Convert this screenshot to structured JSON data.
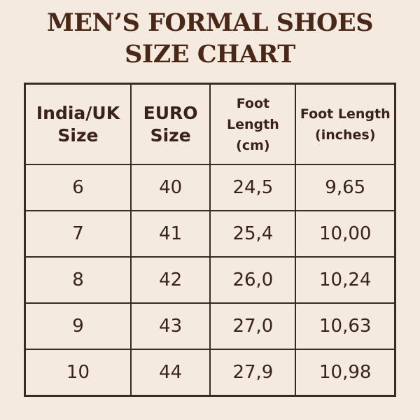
{
  "title": {
    "line1": "MEN’S FORMAL SHOES",
    "line2": "SIZE CHART"
  },
  "table": {
    "headers": [
      [
        "India/UK",
        "Size"
      ],
      [
        "EURO",
        "Size"
      ],
      [
        "Foot",
        "Length (cm)"
      ],
      [
        "Foot Length",
        "(inches)"
      ]
    ],
    "rows": [
      [
        "6",
        "40",
        "24,5",
        "9,65"
      ],
      [
        "7",
        "41",
        "25,4",
        "10,00"
      ],
      [
        "8",
        "42",
        "26,0",
        "10,24"
      ],
      [
        "9",
        "43",
        "27,0",
        "10,63"
      ],
      [
        "10",
        "44",
        "27,9",
        "10,98"
      ]
    ]
  },
  "colors": {
    "background": "#f4eadf",
    "text": "#3a2218",
    "title": "#4a2818",
    "border": "#3a2a22"
  }
}
